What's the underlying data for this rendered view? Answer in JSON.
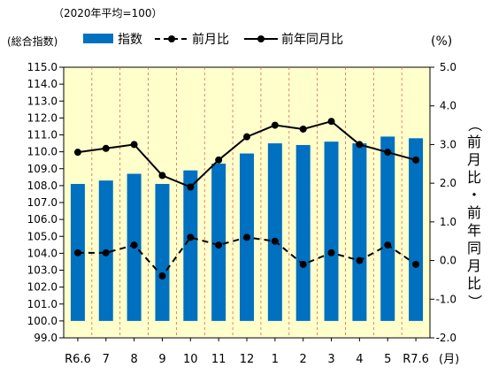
{
  "chart_data": {
    "type": "bar",
    "base_note": "（2020年平均=100）",
    "categories": [
      "R6.6",
      "7",
      "8",
      "9",
      "10",
      "11",
      "12",
      "1",
      "2",
      "3",
      "4",
      "5",
      "R7.6"
    ],
    "x_unit": "(月)",
    "left_axis": {
      "label": "(総合指数)",
      "ylim": [
        99.0,
        115.0
      ],
      "ticks": [
        "99.0",
        "100.0",
        "101.0",
        "102.0",
        "103.0",
        "104.0",
        "105.0",
        "106.0",
        "107.0",
        "108.0",
        "109.0",
        "110.0",
        "111.0",
        "112.0",
        "113.0",
        "114.0",
        "115.0"
      ],
      "bar_base": 100.0
    },
    "right_axis": {
      "unit": "(%)",
      "label": "（前月比・前年同月比）",
      "ylim": [
        -2.0,
        5.0
      ],
      "ticks": [
        "-2.0",
        "-1.0",
        "0.0",
        "1.0",
        "2.0",
        "3.0",
        "4.0",
        "5.0"
      ]
    },
    "series": [
      {
        "name": "指数",
        "type": "bar",
        "axis": "left",
        "values": [
          108.1,
          108.3,
          108.7,
          108.1,
          108.9,
          109.3,
          109.9,
          110.5,
          110.4,
          110.6,
          110.5,
          110.9,
          110.8
        ]
      },
      {
        "name": "前月比",
        "type": "line-dashed",
        "axis": "right",
        "values": [
          0.2,
          0.2,
          0.4,
          -0.4,
          0.6,
          0.4,
          0.6,
          0.5,
          -0.1,
          0.2,
          0.0,
          0.4,
          -0.1
        ]
      },
      {
        "name": "前年同月比",
        "type": "line",
        "axis": "right",
        "values": [
          2.8,
          2.9,
          3.0,
          2.2,
          1.9,
          2.6,
          3.2,
          3.5,
          3.4,
          3.6,
          3.0,
          2.8,
          2.6
        ]
      }
    ],
    "grid": "vertical dashed separators",
    "colors": {
      "plot_bg": "#FFFFCC",
      "bar": "#0070C0",
      "line": "#000000",
      "separator": "#E06060"
    }
  }
}
